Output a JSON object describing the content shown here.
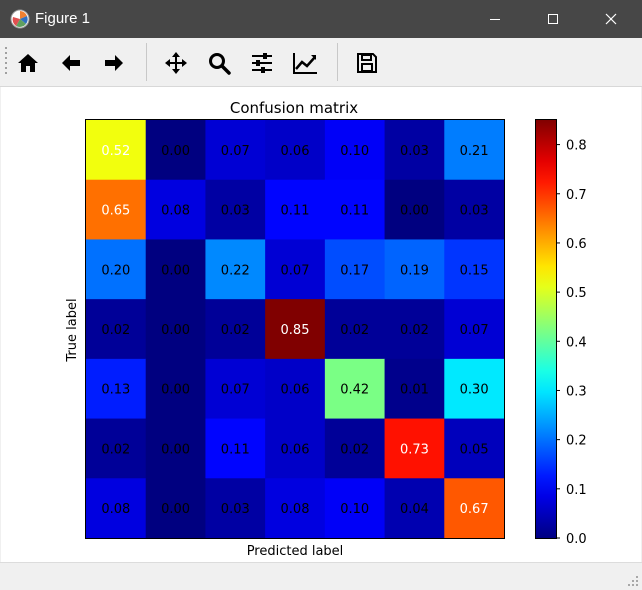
{
  "window": {
    "title": "Figure 1"
  },
  "toolbar": {
    "buttons": [
      {
        "icon": "home-icon",
        "label": "Home"
      },
      {
        "icon": "back-arrow-icon",
        "label": "Back"
      },
      {
        "icon": "forward-arrow-icon",
        "label": "Forward"
      },
      {
        "icon": "pan-icon",
        "label": "Pan"
      },
      {
        "icon": "zoom-icon",
        "label": "Zoom"
      },
      {
        "icon": "configure-subplots-icon",
        "label": "Configure subplots"
      },
      {
        "icon": "edit-axis-icon",
        "label": "Edit axis"
      },
      {
        "icon": "save-icon",
        "label": "Save"
      }
    ]
  },
  "chart_data": {
    "type": "heatmap",
    "title": "Confusion matrix",
    "xlabel": "Predicted label",
    "ylabel": "True label",
    "colormap": "jet",
    "value_range": [
      0.0,
      0.85
    ],
    "colorbar_ticks": [
      "0.0",
      "0.1",
      "0.2",
      "0.3",
      "0.4",
      "0.5",
      "0.6",
      "0.7",
      "0.8"
    ],
    "colorbar_tick_values": [
      0.0,
      0.1,
      0.2,
      0.3,
      0.4,
      0.5,
      0.6,
      0.7,
      0.8
    ],
    "matrix": [
      [
        0.52,
        0.0,
        0.07,
        0.06,
        0.1,
        0.03,
        0.21
      ],
      [
        0.65,
        0.08,
        0.03,
        0.11,
        0.11,
        0.0,
        0.03
      ],
      [
        0.2,
        0.0,
        0.22,
        0.07,
        0.17,
        0.19,
        0.15
      ],
      [
        0.02,
        0.0,
        0.02,
        0.85,
        0.02,
        0.02,
        0.07
      ],
      [
        0.13,
        0.0,
        0.07,
        0.06,
        0.42,
        0.01,
        0.3
      ],
      [
        0.02,
        0.0,
        0.11,
        0.06,
        0.02,
        0.73,
        0.05
      ],
      [
        0.08,
        0.0,
        0.03,
        0.08,
        0.1,
        0.04,
        0.67
      ]
    ],
    "cell_text_white_threshold": 0.425
  }
}
